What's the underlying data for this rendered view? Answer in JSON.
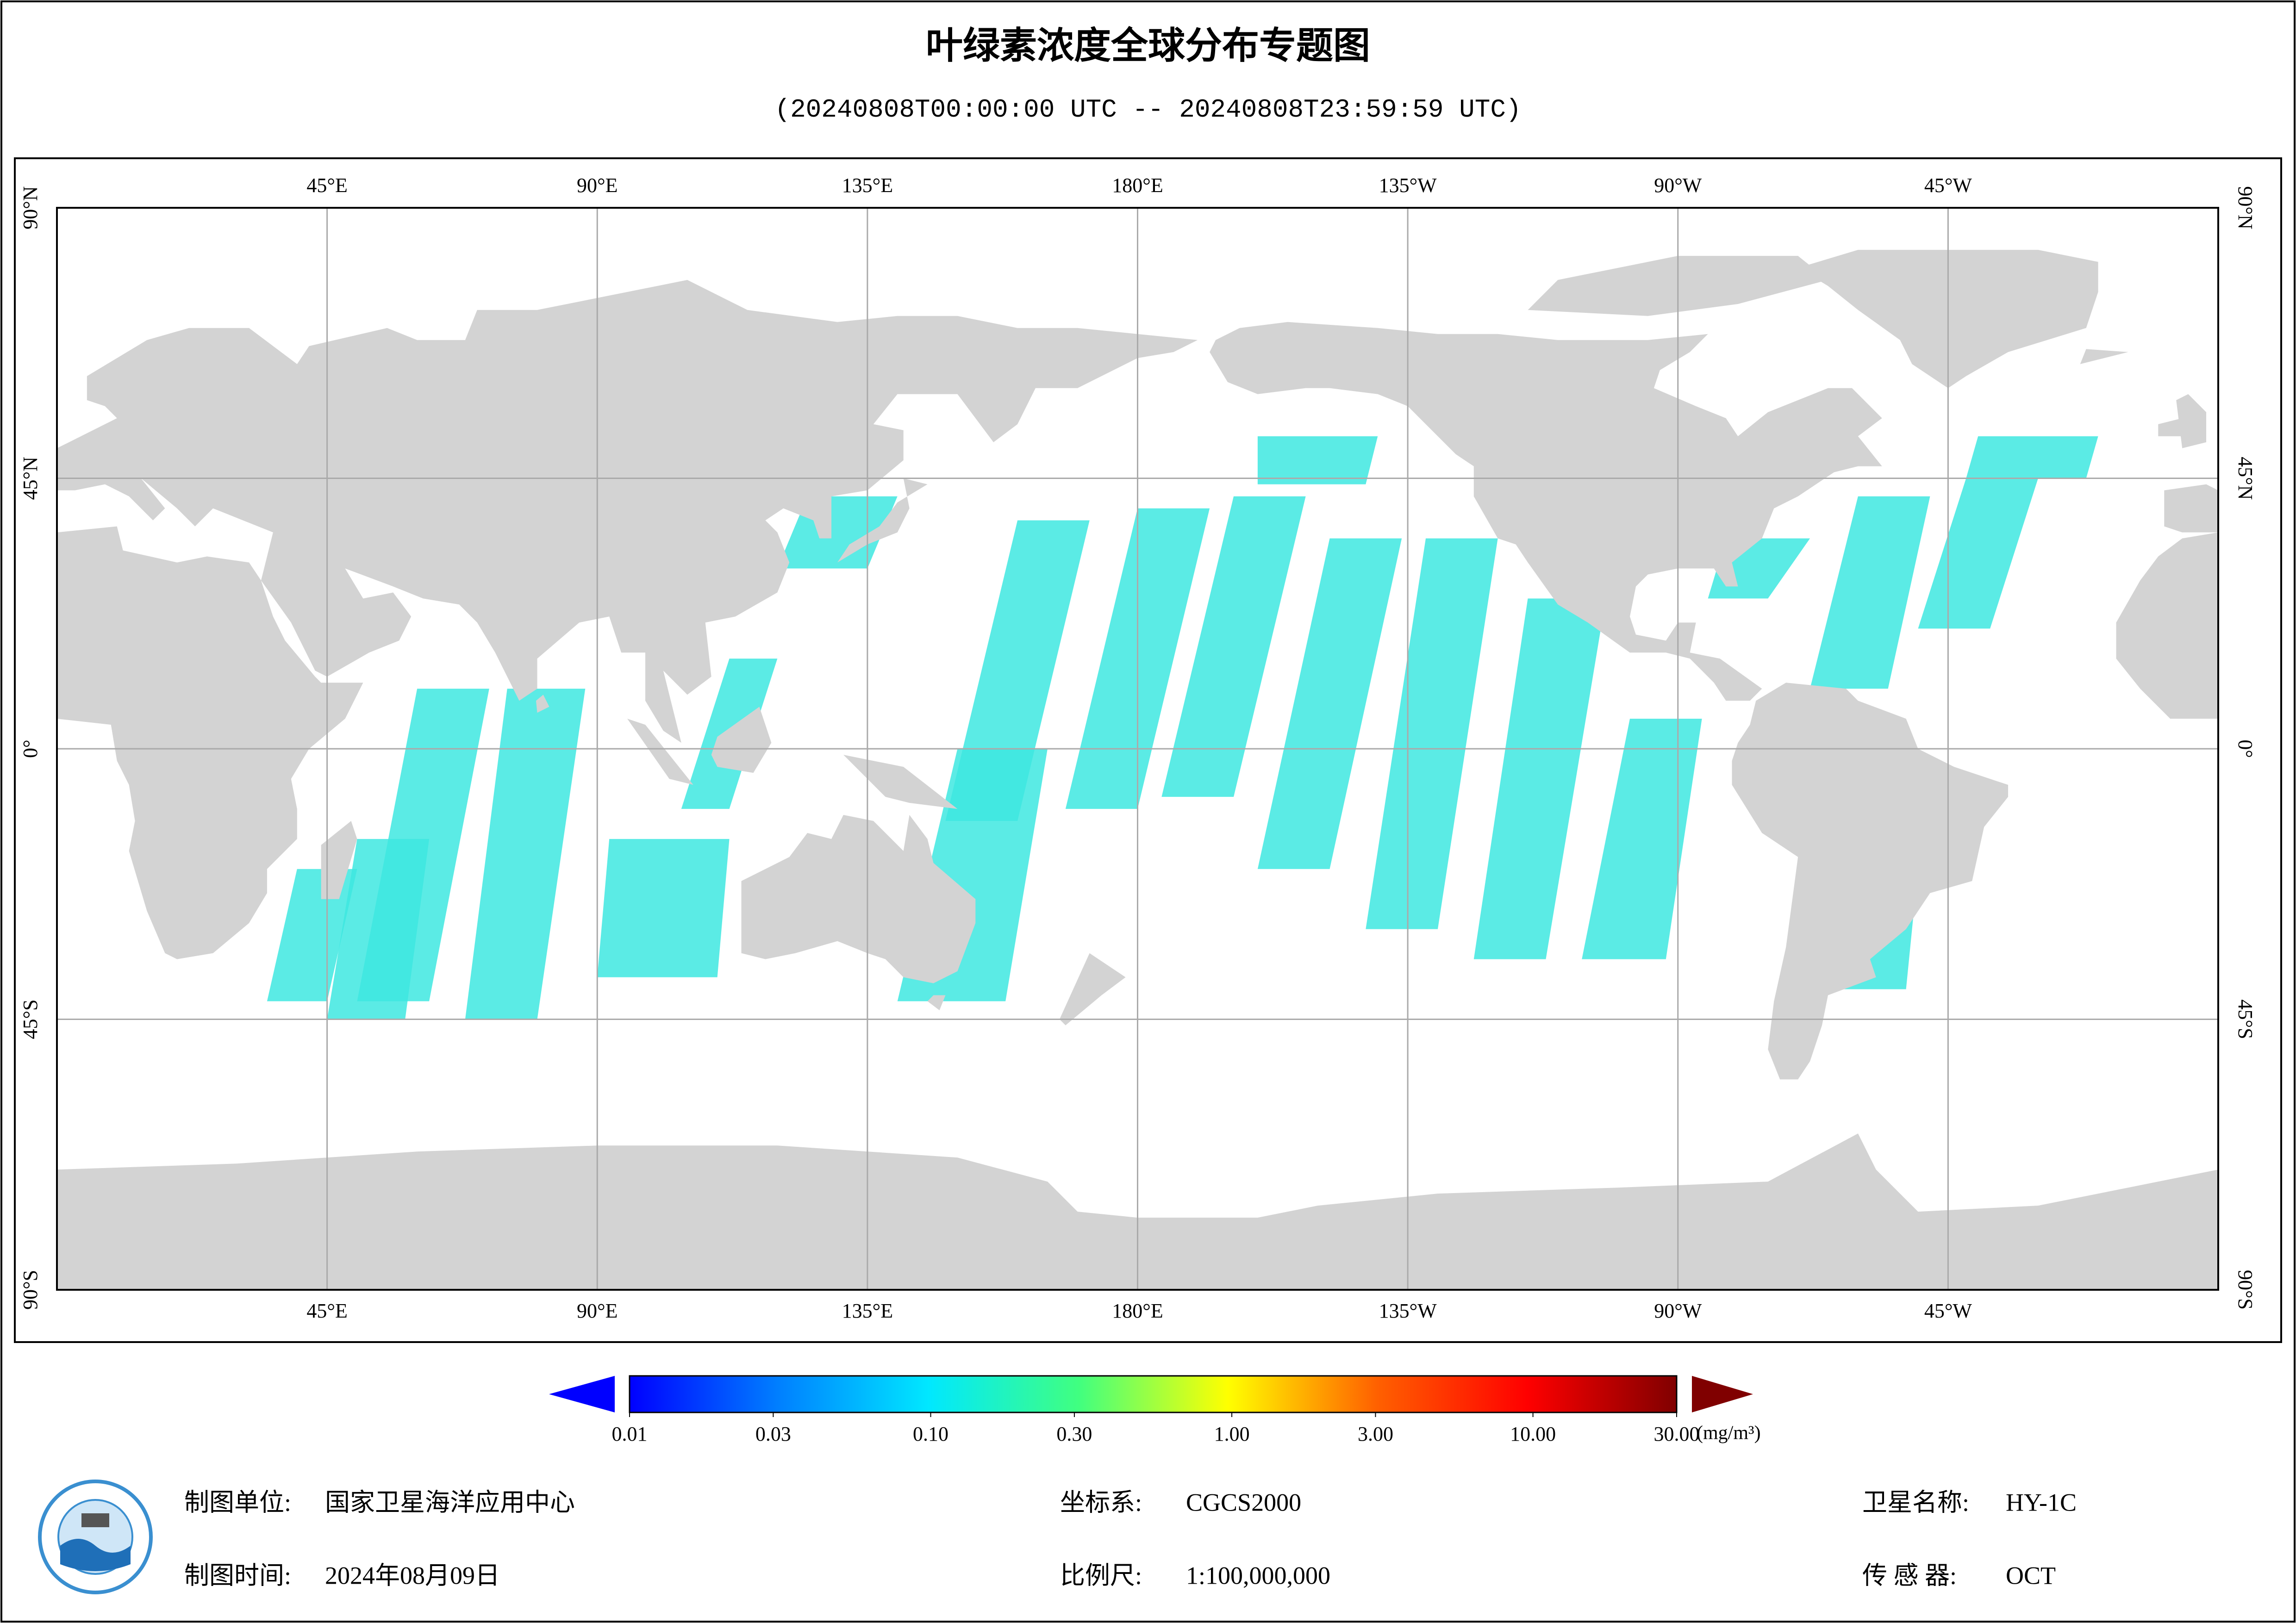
{
  "title": "叶绿素浓度全球分布专题图",
  "subtitle": "(20240808T00:00:00 UTC -- 20240808T23:59:59 UTC)",
  "map": {
    "lonlim": [
      0,
      360
    ],
    "latlim": [
      -90,
      90
    ],
    "grid": true,
    "lonticks": [
      {
        "value": 45,
        "label": "45°E"
      },
      {
        "value": 90,
        "label": "90°E"
      },
      {
        "value": 135,
        "label": "135°E"
      },
      {
        "value": 180,
        "label": "180°E"
      },
      {
        "value": 225,
        "label": "135°W"
      },
      {
        "value": 270,
        "label": "90°W"
      },
      {
        "value": 315,
        "label": "45°W"
      }
    ],
    "latticks": [
      {
        "value": 90,
        "label": "90°N"
      },
      {
        "value": 45,
        "label": "45°N"
      },
      {
        "value": 0,
        "label": "0°"
      },
      {
        "value": -45,
        "label": "45°S"
      },
      {
        "value": -90,
        "label": "90°S"
      }
    ],
    "land_color": "#d3d3d3"
  },
  "colorbar": {
    "lim": [
      0.01,
      30
    ],
    "log": true,
    "ticks": [
      {
        "value": 0.01,
        "label": "0.01"
      },
      {
        "value": 0.03,
        "label": "0.03"
      },
      {
        "value": 0.1,
        "label": "0.10"
      },
      {
        "value": 0.3,
        "label": "0.30"
      },
      {
        "value": 1,
        "label": "1.00"
      },
      {
        "value": 3,
        "label": "3.00"
      },
      {
        "value": 10,
        "label": "10.00"
      },
      {
        "value": 30,
        "label": "30.00"
      }
    ],
    "unit": "(mg/m³)",
    "colors": [
      "#0000ff",
      "#0080ff",
      "#00e8ff",
      "#40ff80",
      "#ffff00",
      "#ff6000",
      "#ff0000",
      "#800000"
    ]
  },
  "footer": [
    {
      "label": "制图单位:",
      "value": "国家卫星海洋应用中心"
    },
    {
      "label": "制图时间:",
      "value": "2024年08月09日"
    },
    {
      "label": "坐标系:",
      "value": "CGCS2000"
    },
    {
      "label": "比例尺:",
      "value": "1:100,000,000"
    },
    {
      "label": "卫星名称:",
      "value": "HY-1C"
    },
    {
      "label": "传 感 器:",
      "value": "OCT"
    }
  ]
}
